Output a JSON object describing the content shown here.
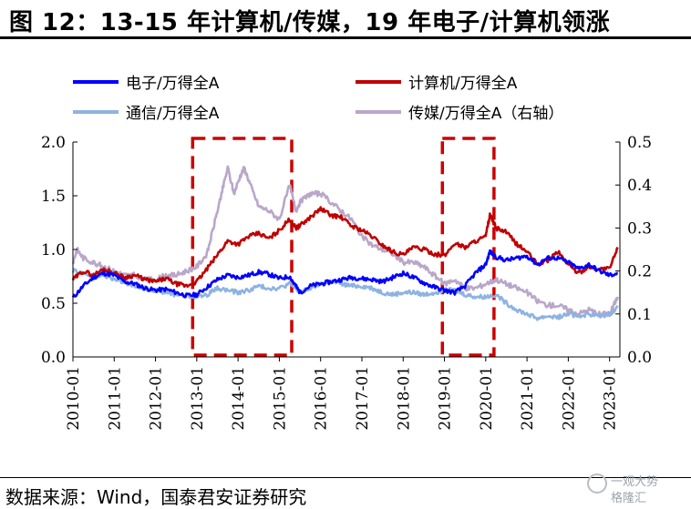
{
  "header": {
    "title": "图 12：13-15 年计算机/传媒，19 年电子/计算机领涨"
  },
  "footer": {
    "source": "数据来源：Wind，国泰君安证券研究"
  },
  "watermark": {
    "line1": "一观大势",
    "line2": "格隆汇"
  },
  "chart_data": {
    "type": "line",
    "xlabel": "",
    "ylabel": "",
    "x_ticks": [
      "2010-01",
      "2011-01",
      "2012-01",
      "2013-01",
      "2014-01",
      "2015-01",
      "2016-01",
      "2017-01",
      "2018-01",
      "2019-01",
      "2020-01",
      "2021-01",
      "2022-01",
      "2023-01"
    ],
    "y_left": {
      "ylim": [
        0,
        2.0
      ],
      "ticks": [
        "0.0",
        "0.5",
        "1.0",
        "1.5",
        "2.0"
      ]
    },
    "y_right": {
      "ylim": [
        0,
        0.5
      ],
      "ticks": [
        "0.0",
        "0.1",
        "0.2",
        "0.3",
        "0.4",
        "0.5"
      ]
    },
    "legend_position": "top",
    "series": [
      {
        "name": "电子/万得全A",
        "color": "#0000ff",
        "axis": "left",
        "points": [
          [
            2010.0,
            0.55
          ],
          [
            2010.25,
            0.66
          ],
          [
            2010.5,
            0.74
          ],
          [
            2010.75,
            0.78
          ],
          [
            2011.0,
            0.76
          ],
          [
            2011.25,
            0.7
          ],
          [
            2011.5,
            0.68
          ],
          [
            2011.75,
            0.64
          ],
          [
            2012.0,
            0.62
          ],
          [
            2012.25,
            0.63
          ],
          [
            2012.5,
            0.6
          ],
          [
            2012.75,
            0.57
          ],
          [
            2013.0,
            0.58
          ],
          [
            2013.25,
            0.65
          ],
          [
            2013.5,
            0.72
          ],
          [
            2013.75,
            0.76
          ],
          [
            2014.0,
            0.74
          ],
          [
            2014.25,
            0.76
          ],
          [
            2014.5,
            0.79
          ],
          [
            2014.75,
            0.77
          ],
          [
            2015.0,
            0.73
          ],
          [
            2015.25,
            0.75
          ],
          [
            2015.4,
            0.66
          ],
          [
            2015.5,
            0.6
          ],
          [
            2015.75,
            0.66
          ],
          [
            2016.0,
            0.68
          ],
          [
            2016.25,
            0.7
          ],
          [
            2016.5,
            0.72
          ],
          [
            2016.75,
            0.74
          ],
          [
            2017.0,
            0.73
          ],
          [
            2017.25,
            0.72
          ],
          [
            2017.5,
            0.7
          ],
          [
            2017.75,
            0.74
          ],
          [
            2018.0,
            0.78
          ],
          [
            2018.25,
            0.74
          ],
          [
            2018.5,
            0.69
          ],
          [
            2018.75,
            0.65
          ],
          [
            2019.0,
            0.62
          ],
          [
            2019.25,
            0.6
          ],
          [
            2019.5,
            0.66
          ],
          [
            2019.75,
            0.78
          ],
          [
            2020.0,
            0.86
          ],
          [
            2020.1,
            0.98
          ],
          [
            2020.25,
            0.93
          ],
          [
            2020.5,
            0.9
          ],
          [
            2020.75,
            0.92
          ],
          [
            2021.0,
            0.94
          ],
          [
            2021.25,
            0.86
          ],
          [
            2021.5,
            0.92
          ],
          [
            2021.75,
            0.92
          ],
          [
            2022.0,
            0.88
          ],
          [
            2022.25,
            0.82
          ],
          [
            2022.5,
            0.86
          ],
          [
            2022.75,
            0.8
          ],
          [
            2023.0,
            0.76
          ],
          [
            2023.2,
            0.78
          ]
        ]
      },
      {
        "name": "计算机/万得全A",
        "color": "#c00000",
        "axis": "left",
        "points": [
          [
            2010.0,
            0.72
          ],
          [
            2010.25,
            0.8
          ],
          [
            2010.5,
            0.76
          ],
          [
            2010.75,
            0.82
          ],
          [
            2011.0,
            0.78
          ],
          [
            2011.25,
            0.74
          ],
          [
            2011.5,
            0.76
          ],
          [
            2011.75,
            0.72
          ],
          [
            2012.0,
            0.7
          ],
          [
            2012.25,
            0.73
          ],
          [
            2012.5,
            0.68
          ],
          [
            2012.75,
            0.66
          ],
          [
            2013.0,
            0.7
          ],
          [
            2013.25,
            0.82
          ],
          [
            2013.5,
            0.95
          ],
          [
            2013.75,
            1.08
          ],
          [
            2014.0,
            1.05
          ],
          [
            2014.25,
            1.12
          ],
          [
            2014.5,
            1.15
          ],
          [
            2014.75,
            1.1
          ],
          [
            2015.0,
            1.18
          ],
          [
            2015.25,
            1.28
          ],
          [
            2015.4,
            1.2
          ],
          [
            2015.5,
            1.22
          ],
          [
            2015.75,
            1.3
          ],
          [
            2016.0,
            1.38
          ],
          [
            2016.25,
            1.32
          ],
          [
            2016.5,
            1.3
          ],
          [
            2016.75,
            1.22
          ],
          [
            2017.0,
            1.18
          ],
          [
            2017.25,
            1.12
          ],
          [
            2017.5,
            1.04
          ],
          [
            2017.75,
            0.98
          ],
          [
            2018.0,
            0.95
          ],
          [
            2018.25,
            1.02
          ],
          [
            2018.5,
            1.0
          ],
          [
            2018.75,
            0.96
          ],
          [
            2019.0,
            0.94
          ],
          [
            2019.25,
            1.06
          ],
          [
            2019.5,
            1.02
          ],
          [
            2019.75,
            1.08
          ],
          [
            2020.0,
            1.12
          ],
          [
            2020.1,
            1.32
          ],
          [
            2020.25,
            1.2
          ],
          [
            2020.5,
            1.16
          ],
          [
            2020.75,
            1.05
          ],
          [
            2021.0,
            0.98
          ],
          [
            2021.25,
            0.86
          ],
          [
            2021.5,
            0.9
          ],
          [
            2021.75,
            0.98
          ],
          [
            2022.0,
            0.86
          ],
          [
            2022.25,
            0.78
          ],
          [
            2022.5,
            0.84
          ],
          [
            2022.75,
            0.82
          ],
          [
            2023.0,
            0.82
          ],
          [
            2023.2,
            1.02
          ]
        ]
      },
      {
        "name": "通信/万得全A",
        "color": "#8db3e2",
        "axis": "left",
        "points": [
          [
            2010.0,
            0.8
          ],
          [
            2010.25,
            0.78
          ],
          [
            2010.5,
            0.74
          ],
          [
            2010.75,
            0.76
          ],
          [
            2011.0,
            0.72
          ],
          [
            2011.25,
            0.7
          ],
          [
            2011.5,
            0.66
          ],
          [
            2011.75,
            0.64
          ],
          [
            2012.0,
            0.62
          ],
          [
            2012.25,
            0.6
          ],
          [
            2012.5,
            0.58
          ],
          [
            2012.75,
            0.57
          ],
          [
            2013.0,
            0.56
          ],
          [
            2013.25,
            0.58
          ],
          [
            2013.5,
            0.64
          ],
          [
            2013.75,
            0.62
          ],
          [
            2014.0,
            0.6
          ],
          [
            2014.25,
            0.62
          ],
          [
            2014.5,
            0.66
          ],
          [
            2014.75,
            0.64
          ],
          [
            2015.0,
            0.64
          ],
          [
            2015.25,
            0.68
          ],
          [
            2015.5,
            0.6
          ],
          [
            2015.75,
            0.64
          ],
          [
            2016.0,
            0.68
          ],
          [
            2016.25,
            0.7
          ],
          [
            2016.5,
            0.68
          ],
          [
            2016.75,
            0.66
          ],
          [
            2017.0,
            0.66
          ],
          [
            2017.25,
            0.64
          ],
          [
            2017.5,
            0.6
          ],
          [
            2017.75,
            0.58
          ],
          [
            2018.0,
            0.6
          ],
          [
            2018.25,
            0.6
          ],
          [
            2018.5,
            0.58
          ],
          [
            2018.75,
            0.6
          ],
          [
            2019.0,
            0.62
          ],
          [
            2019.25,
            0.62
          ],
          [
            2019.5,
            0.58
          ],
          [
            2019.75,
            0.56
          ],
          [
            2020.0,
            0.56
          ],
          [
            2020.25,
            0.58
          ],
          [
            2020.5,
            0.5
          ],
          [
            2020.75,
            0.44
          ],
          [
            2021.0,
            0.4
          ],
          [
            2021.25,
            0.36
          ],
          [
            2021.5,
            0.38
          ],
          [
            2021.75,
            0.37
          ],
          [
            2022.0,
            0.4
          ],
          [
            2022.25,
            0.38
          ],
          [
            2022.5,
            0.4
          ],
          [
            2022.75,
            0.38
          ],
          [
            2023.0,
            0.4
          ],
          [
            2023.2,
            0.46
          ]
        ]
      },
      {
        "name": "传媒/万得全A（右轴）",
        "color": "#b9a7c9",
        "axis": "right",
        "points": [
          [
            2010.0,
            0.22
          ],
          [
            2010.1,
            0.25
          ],
          [
            2010.25,
            0.23
          ],
          [
            2010.5,
            0.22
          ],
          [
            2010.75,
            0.21
          ],
          [
            2011.0,
            0.2
          ],
          [
            2011.25,
            0.19
          ],
          [
            2011.5,
            0.19
          ],
          [
            2011.75,
            0.18
          ],
          [
            2012.0,
            0.18
          ],
          [
            2012.25,
            0.19
          ],
          [
            2012.5,
            0.19
          ],
          [
            2012.75,
            0.2
          ],
          [
            2013.0,
            0.21
          ],
          [
            2013.25,
            0.24
          ],
          [
            2013.4,
            0.3
          ],
          [
            2013.6,
            0.38
          ],
          [
            2013.75,
            0.44
          ],
          [
            2013.9,
            0.38
          ],
          [
            2014.05,
            0.42
          ],
          [
            2014.15,
            0.44
          ],
          [
            2014.3,
            0.4
          ],
          [
            2014.5,
            0.35
          ],
          [
            2014.75,
            0.34
          ],
          [
            2015.0,
            0.32
          ],
          [
            2015.25,
            0.4
          ],
          [
            2015.4,
            0.34
          ],
          [
            2015.5,
            0.36
          ],
          [
            2015.75,
            0.38
          ],
          [
            2016.0,
            0.38
          ],
          [
            2016.25,
            0.36
          ],
          [
            2016.5,
            0.34
          ],
          [
            2016.75,
            0.32
          ],
          [
            2017.0,
            0.28
          ],
          [
            2017.25,
            0.26
          ],
          [
            2017.5,
            0.25
          ],
          [
            2017.75,
            0.24
          ],
          [
            2018.0,
            0.22
          ],
          [
            2018.25,
            0.22
          ],
          [
            2018.5,
            0.21
          ],
          [
            2018.75,
            0.19
          ],
          [
            2019.0,
            0.17
          ],
          [
            2019.25,
            0.18
          ],
          [
            2019.5,
            0.16
          ],
          [
            2019.75,
            0.16
          ],
          [
            2020.0,
            0.17
          ],
          [
            2020.25,
            0.18
          ],
          [
            2020.5,
            0.17
          ],
          [
            2020.75,
            0.16
          ],
          [
            2021.0,
            0.15
          ],
          [
            2021.25,
            0.13
          ],
          [
            2021.5,
            0.12
          ],
          [
            2021.75,
            0.12
          ],
          [
            2022.0,
            0.11
          ],
          [
            2022.25,
            0.1
          ],
          [
            2022.5,
            0.11
          ],
          [
            2022.75,
            0.1
          ],
          [
            2023.0,
            0.1
          ],
          [
            2023.2,
            0.14
          ]
        ]
      }
    ],
    "highlight_regions": [
      {
        "x0": 2012.9,
        "x1": 2015.3,
        "style": "dashed-box",
        "color": "#cc0000"
      },
      {
        "x0": 2018.95,
        "x1": 2020.2,
        "style": "dashed-box",
        "color": "#cc0000"
      }
    ]
  }
}
